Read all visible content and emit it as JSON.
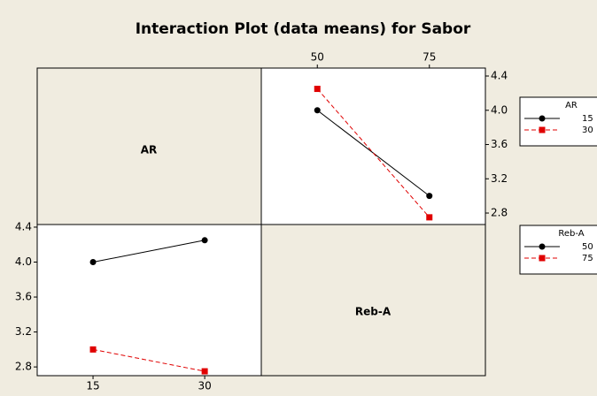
{
  "chart_data": [
    {
      "type": "line",
      "title": "Interaction Plot (data means) for Sabor",
      "factor": "AR",
      "x": [
        50,
        75
      ],
      "xlim": [
        37.5,
        87.5
      ],
      "xticks": [
        50,
        75
      ],
      "ylim": [
        2.666,
        4.493
      ],
      "yticks": [
        2.8,
        3.2,
        3.6,
        {
          "value": 4,
          "label": "4.0"
        },
        4.4
      ],
      "series": [
        {
          "name": "15",
          "color": "#000000",
          "marker": "circle",
          "linestyle": "solid",
          "values": [
            4.0,
            3.0
          ]
        },
        {
          "name": "30",
          "color": "#e00000",
          "marker": "square",
          "linestyle": "dashed",
          "values": [
            4.25,
            2.75
          ]
        }
      ]
    },
    {
      "type": "line",
      "factor": "Reb-A",
      "x": [
        15,
        30
      ],
      "xlim": [
        7.5,
        37.6
      ],
      "xticks": [
        15,
        30
      ],
      "ylim": [
        2.7,
        4.43
      ],
      "yticks": [
        2.8,
        3.2,
        3.6,
        {
          "value": 4,
          "label": "4.0"
        },
        4.4
      ],
      "series": [
        {
          "name": "50",
          "color": "#000000",
          "marker": "circle",
          "linestyle": "solid",
          "values": [
            4.0,
            4.25
          ]
        },
        {
          "name": "75",
          "color": "#e00000",
          "marker": "square",
          "linestyle": "dashed",
          "values": [
            3.0,
            2.75
          ]
        }
      ]
    }
  ]
}
